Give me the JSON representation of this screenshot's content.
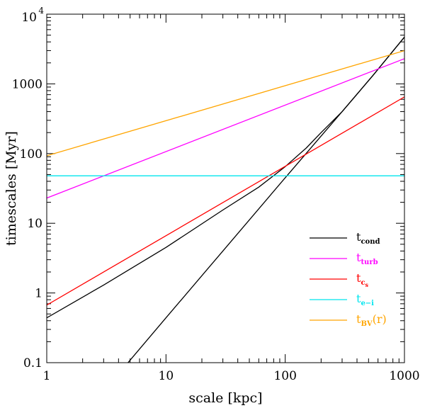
{
  "chart_data": {
    "type": "line",
    "xscale": "log",
    "yscale": "log",
    "xlim": [
      1,
      1000
    ],
    "ylim": [
      0.1,
      10000
    ],
    "xlabel": "scale   [kpc]",
    "ylabel": "timescales   [Myr]",
    "x_tick_labels": [
      "1",
      "10",
      "100",
      "1000"
    ],
    "y_tick_labels": [
      {
        "value": 0.1,
        "base": "0.1",
        "exp": ""
      },
      {
        "value": 1,
        "base": "1",
        "exp": ""
      },
      {
        "value": 10,
        "base": "10",
        "exp": ""
      },
      {
        "value": 100,
        "base": "100",
        "exp": ""
      },
      {
        "value": 1000,
        "base": "1000",
        "exp": ""
      },
      {
        "value": 10000,
        "base": "10",
        "exp": "4"
      }
    ],
    "series": [
      {
        "name": "t_cond (lower branch)",
        "color": "#000000",
        "x": [
          4.8,
          10,
          30,
          100,
          300,
          550,
          1000
        ],
        "y": [
          0.1,
          0.44,
          4.0,
          45,
          400,
          1350,
          4700
        ]
      },
      {
        "name": "t_cond (upper branch)",
        "color": "#000000",
        "x": [
          1,
          3,
          10,
          30,
          60,
          100,
          150,
          200,
          300,
          550,
          1000
        ],
        "y": [
          0.44,
          1.3,
          4.5,
          15.5,
          33,
          65,
          120,
          200,
          400,
          1350,
          4700
        ]
      },
      {
        "name": "t_turb",
        "color": "#ff00ff",
        "x": [
          1,
          1000
        ],
        "y": [
          23,
          2300
        ]
      },
      {
        "name": "t_cs",
        "color": "#ff0000",
        "x": [
          1,
          1000
        ],
        "y": [
          0.67,
          650
        ]
      },
      {
        "name": "t_e-i",
        "color": "#00e5ee",
        "x": [
          1,
          1000
        ],
        "y": [
          48,
          48
        ]
      },
      {
        "name": "t_BV(r)",
        "color": "#ffa500",
        "x": [
          1,
          1000
        ],
        "y": [
          93,
          3000
        ]
      }
    ],
    "legend": {
      "position": "bottom-right",
      "entries": [
        {
          "color": "#000000",
          "main": "t",
          "sub": "cond",
          "subsub": "",
          "suffix": ""
        },
        {
          "color": "#ff00ff",
          "main": "t",
          "sub": "turb",
          "subsub": "",
          "suffix": ""
        },
        {
          "color": "#ff0000",
          "main": "t",
          "sub": "c",
          "subsub": "s",
          "suffix": ""
        },
        {
          "color": "#00e5ee",
          "main": "t",
          "sub": "e−i",
          "subsub": "",
          "suffix": ""
        },
        {
          "color": "#ffa500",
          "main": "t",
          "sub": "BV",
          "subsub": "",
          "suffix": "(r)"
        }
      ]
    }
  }
}
